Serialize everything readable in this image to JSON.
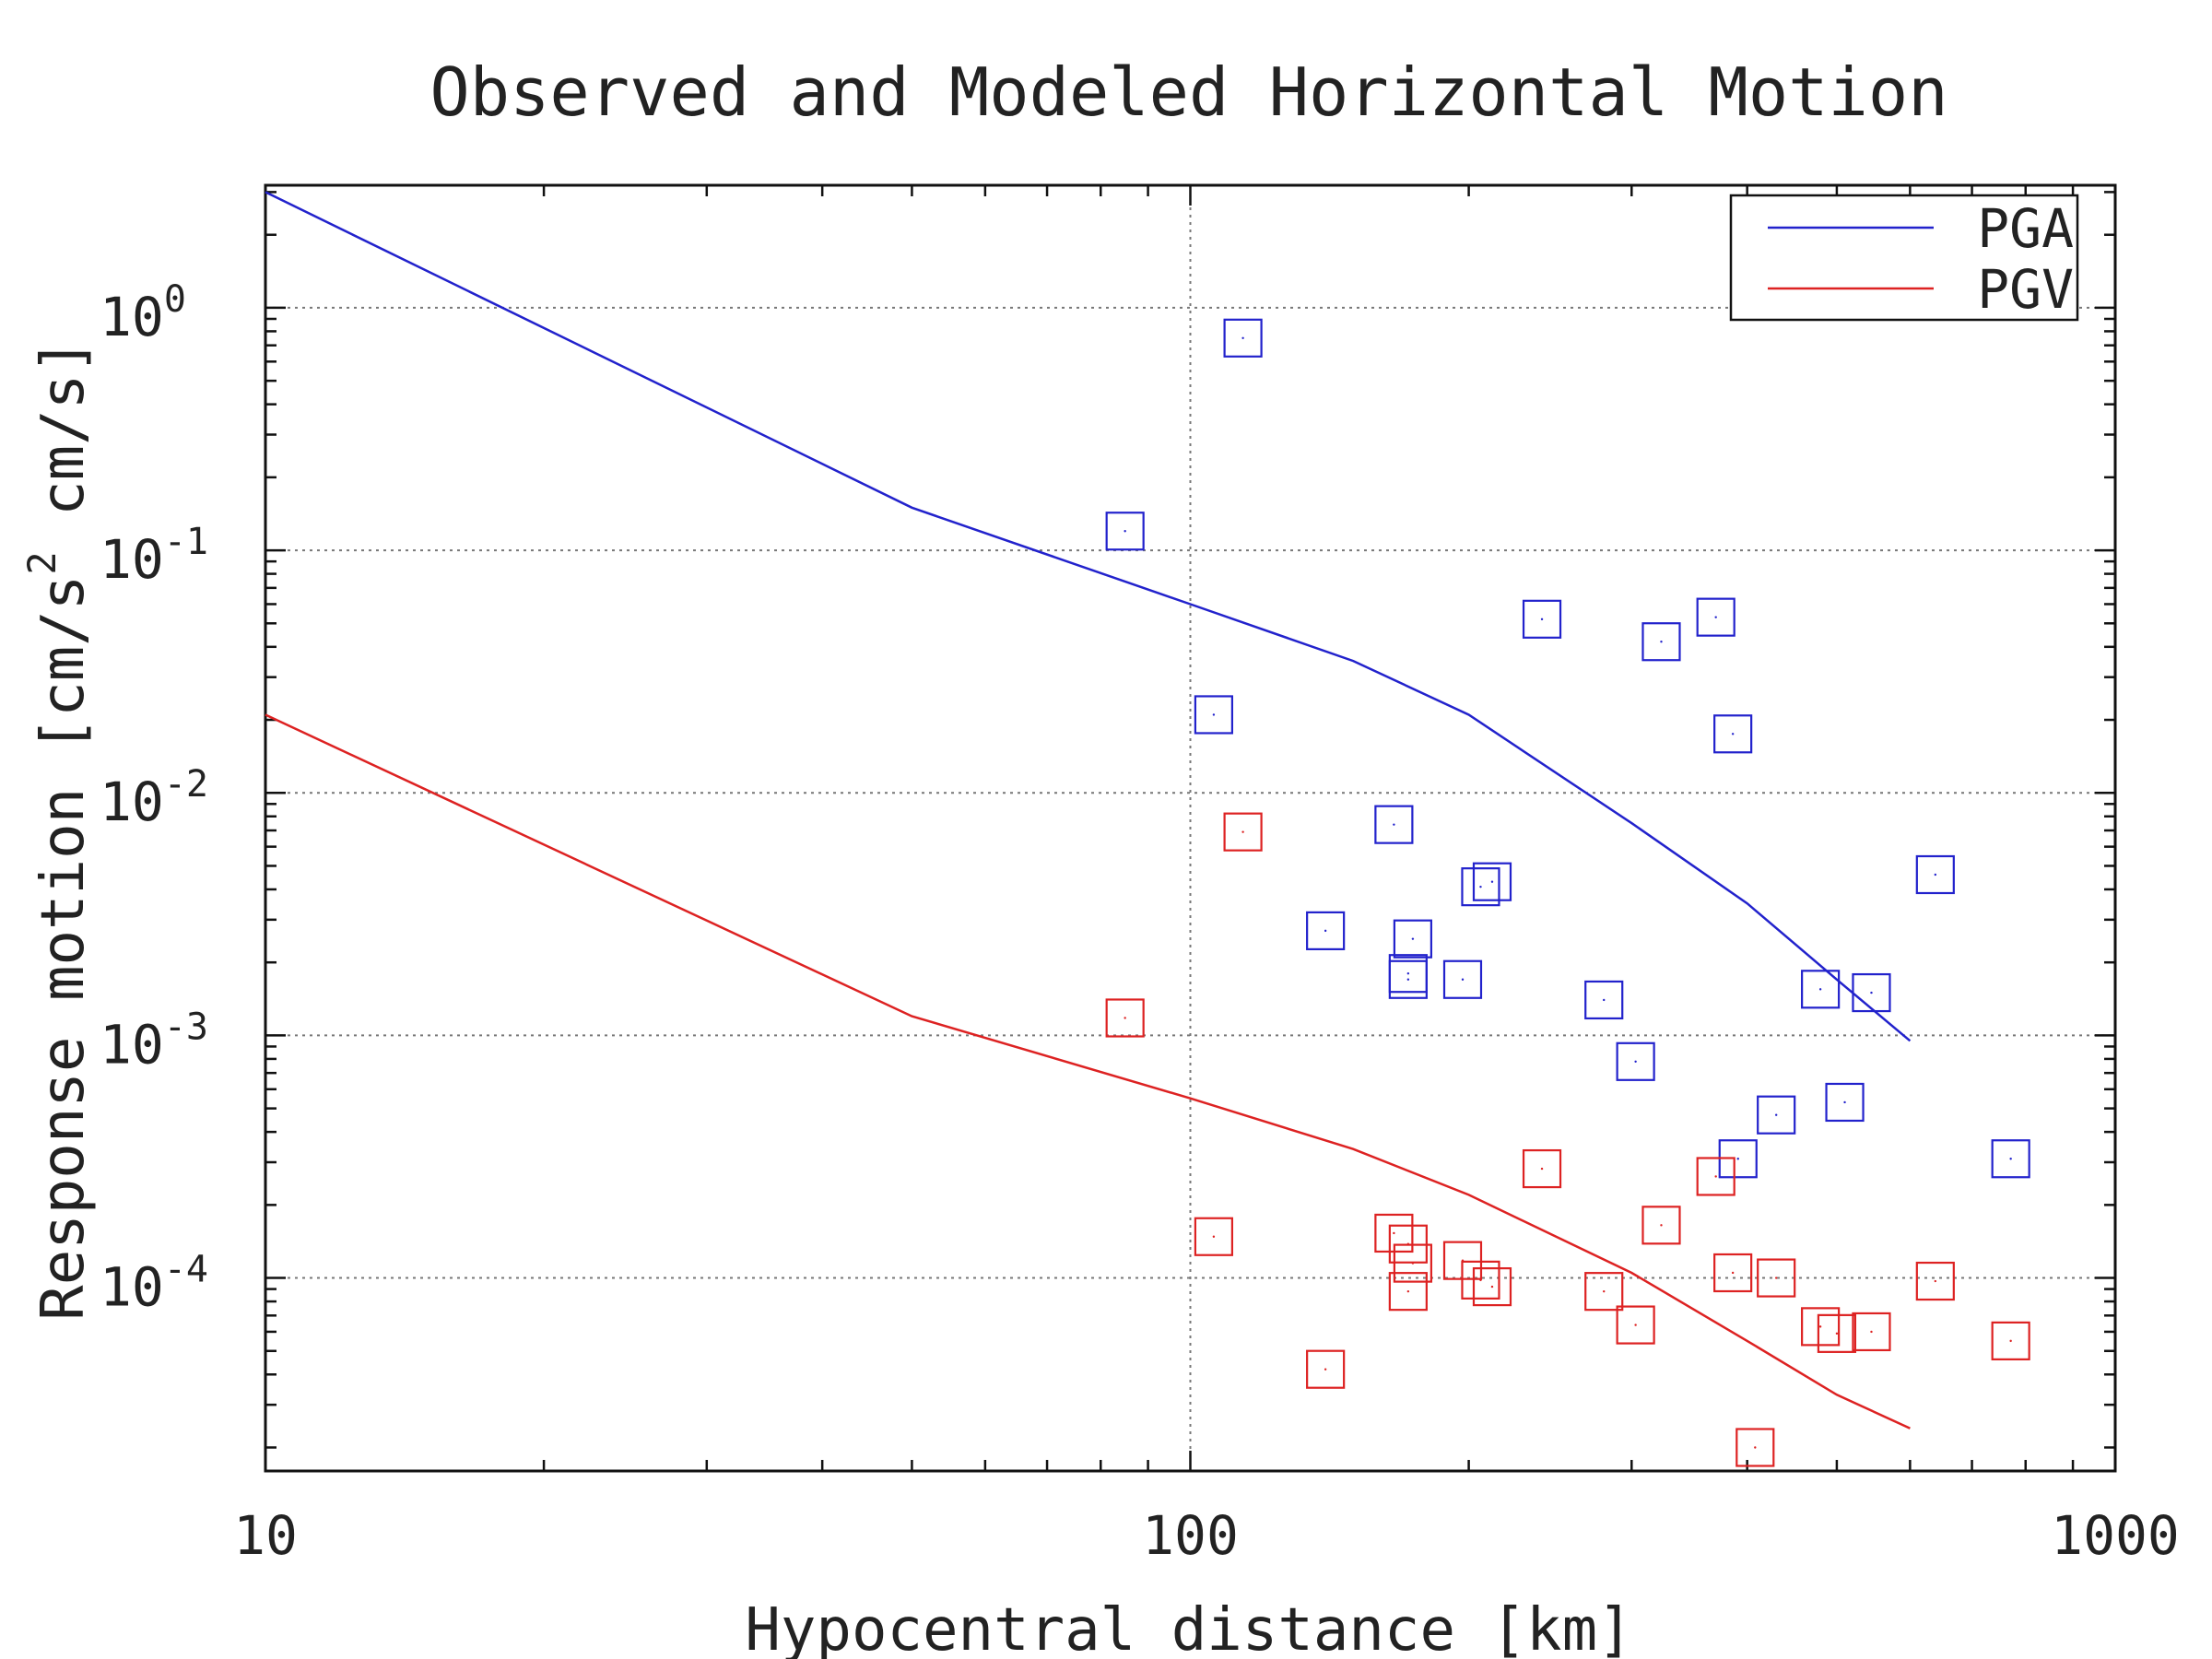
{
  "chart_data": {
    "type": "scatter",
    "title": "Observed and Modeled Horizontal Motion",
    "xlabel": "Hypocentral distance [km]",
    "ylabel_parts": [
      "Response motion  [cm/s",
      "2",
      "  cm/s]"
    ],
    "x_scale": "log",
    "y_scale": "log",
    "xlim": [
      10,
      1000
    ],
    "ylim": [
      1.6e-05,
      3.2
    ],
    "x_ticks": [
      {
        "value": 10,
        "label": "10"
      },
      {
        "value": 100,
        "label": "100"
      },
      {
        "value": 1000,
        "label": "1000"
      }
    ],
    "y_ticks": [
      {
        "value": 1,
        "base": "10",
        "exp": "0"
      },
      {
        "value": 0.1,
        "base": "10",
        "exp": "-1"
      },
      {
        "value": 0.01,
        "base": "10",
        "exp": "-2"
      },
      {
        "value": 0.001,
        "base": "10",
        "exp": "-3"
      },
      {
        "value": 0.0001,
        "base": "10",
        "exp": "-4"
      }
    ],
    "grid": true,
    "legend_position": "top-right",
    "colors": {
      "PGA": "#2222cc",
      "PGV": "#dd2222",
      "axis": "#111111",
      "grid": "#777777"
    },
    "series": [
      {
        "name": "PGA",
        "kind": "line",
        "color": "#2222cc",
        "points": [
          [
            10,
            3.0
          ],
          [
            50,
            0.15
          ],
          [
            100,
            0.06
          ],
          [
            150,
            0.035
          ],
          [
            200,
            0.021
          ],
          [
            300,
            0.0075
          ],
          [
            400,
            0.0035
          ],
          [
            500,
            0.0017
          ],
          [
            600,
            0.00095
          ]
        ]
      },
      {
        "name": "PGV",
        "kind": "line",
        "color": "#dd2222",
        "points": [
          [
            10,
            0.021
          ],
          [
            50,
            0.0012
          ],
          [
            100,
            0.00055
          ],
          [
            150,
            0.00034
          ],
          [
            200,
            0.00022
          ],
          [
            300,
            0.000105
          ],
          [
            400,
            5.5e-05
          ],
          [
            500,
            3.3e-05
          ],
          [
            600,
            2.4e-05
          ]
        ]
      },
      {
        "name": "PGA",
        "kind": "markers",
        "color": "#2222cc",
        "points": [
          [
            85,
            0.12
          ],
          [
            114,
            0.75
          ],
          [
            106,
            0.021
          ],
          [
            140,
            0.0027
          ],
          [
            166,
            0.0074
          ],
          [
            174,
            0.0025
          ],
          [
            172,
            0.0018
          ],
          [
            172,
            0.0017
          ],
          [
            197,
            0.0017
          ],
          [
            206,
            0.0041
          ],
          [
            212,
            0.0043
          ],
          [
            240,
            0.052
          ],
          [
            280,
            0.0014
          ],
          [
            303,
            0.00078
          ],
          [
            323,
            0.042
          ],
          [
            370,
            0.053
          ],
          [
            386,
            0.0175
          ],
          [
            391,
            0.00031
          ],
          [
            430,
            0.00047
          ],
          [
            480,
            0.00155
          ],
          [
            510,
            0.00053
          ],
          [
            545,
            0.0015
          ],
          [
            639,
            0.0046
          ],
          [
            771,
            0.00031
          ]
        ]
      },
      {
        "name": "PGV",
        "kind": "markers",
        "color": "#dd2222",
        "points": [
          [
            85,
            0.00118
          ],
          [
            114,
            0.0069
          ],
          [
            106,
            0.000148
          ],
          [
            140,
            4.2e-05
          ],
          [
            166,
            0.000153
          ],
          [
            174,
            0.000115
          ],
          [
            172,
            0.000138
          ],
          [
            172,
            8.8e-05
          ],
          [
            197,
            0.000118
          ],
          [
            206,
            9.8e-05
          ],
          [
            212,
            9.2e-05
          ],
          [
            240,
            0.000282
          ],
          [
            280,
            8.8e-05
          ],
          [
            303,
            6.4e-05
          ],
          [
            323,
            0.000165
          ],
          [
            370,
            0.000262
          ],
          [
            386,
            0.000105
          ],
          [
            408,
            2e-05
          ],
          [
            430,
            0.0001
          ],
          [
            480,
            6.3e-05
          ],
          [
            500,
            5.9e-05
          ],
          [
            545,
            6e-05
          ],
          [
            639,
            9.7e-05
          ],
          [
            771,
            5.5e-05
          ]
        ]
      }
    ]
  }
}
